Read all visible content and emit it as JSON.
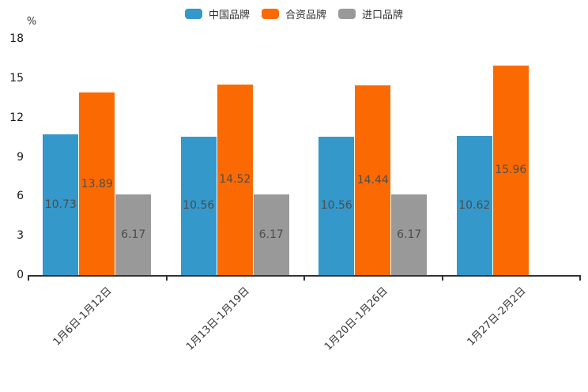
{
  "chart_data": {
    "type": "bar",
    "title": "",
    "xlabel": "",
    "ylabel": "%",
    "categories": [
      "1月6日-1月12日",
      "1月13日-1月19日",
      "1月20日-1月26日",
      "1月27日-2月2日"
    ],
    "series": [
      {
        "name": "中国品牌",
        "color": "#3498cb",
        "values": [
          10.73,
          10.56,
          10.56,
          10.62
        ]
      },
      {
        "name": "合资品牌",
        "color": "#fb6a02",
        "values": [
          13.89,
          14.52,
          14.44,
          15.96
        ]
      },
      {
        "name": "进口品牌",
        "color": "#999999",
        "values": [
          6.17,
          6.17,
          6.17,
          null
        ]
      }
    ],
    "ylim": [
      0,
      18
    ],
    "yticks": [
      0,
      3,
      6,
      9,
      12,
      15,
      18
    ],
    "legend_position": "top",
    "grid": false,
    "value_label_color": "#4d4d4d",
    "axis_color": "#333333",
    "tick_label_color": "#1a1a1a"
  }
}
